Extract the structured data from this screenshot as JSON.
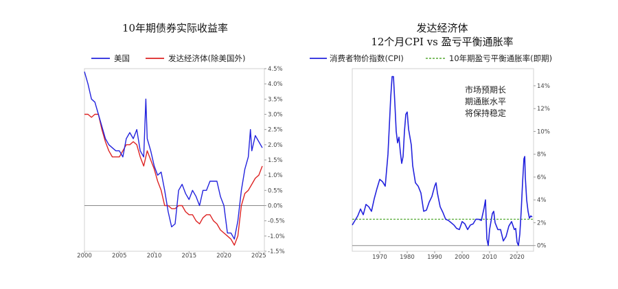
{
  "chart_data": [
    {
      "type": "line",
      "title": "10年期债券实际收益率",
      "xlabel": "",
      "ylabel": "",
      "xlim": [
        2000,
        2025.8
      ],
      "ylim": [
        -1.5,
        4.5
      ],
      "x_ticks": [
        2000,
        2005,
        2010,
        2015,
        2020,
        2025
      ],
      "x_tick_labels": [
        "2000",
        "2005",
        "2010",
        "2015",
        "2020",
        "2025"
      ],
      "y_ticks": [
        -1.5,
        -1.0,
        -0.5,
        0.0,
        0.5,
        1.0,
        1.5,
        2.0,
        2.5,
        3.0,
        3.5,
        4.0,
        4.5
      ],
      "y_tick_labels": [
        "-1.5%",
        "-1.0%",
        "-0.5%",
        "0.0%",
        "0.5%",
        "1.0%",
        "1.5%",
        "2.0%",
        "2.5%",
        "3.0%",
        "3.5%",
        "4.0%",
        "4.5%"
      ],
      "y_axis_side": "right",
      "zero_line": true,
      "grid": false,
      "legend_position": "top",
      "series": [
        {
          "name": "美国",
          "color": "#2222dd",
          "x": [
            2000.0,
            2000.5,
            2001.0,
            2001.5,
            2002.0,
            2002.5,
            2003.0,
            2003.5,
            2004.0,
            2004.5,
            2005.0,
            2005.5,
            2006.0,
            2006.5,
            2007.0,
            2007.5,
            2008.0,
            2008.5,
            2008.8,
            2009.0,
            2009.5,
            2010.0,
            2010.5,
            2011.0,
            2011.5,
            2012.0,
            2012.5,
            2013.0,
            2013.5,
            2014.0,
            2014.5,
            2015.0,
            2015.5,
            2016.0,
            2016.5,
            2017.0,
            2017.5,
            2018.0,
            2018.5,
            2019.0,
            2019.5,
            2020.0,
            2020.5,
            2021.0,
            2021.5,
            2022.0,
            2022.5,
            2023.0,
            2023.5,
            2023.8,
            2024.0,
            2024.5,
            2025.0,
            2025.5
          ],
          "values": [
            4.4,
            4.0,
            3.5,
            3.4,
            3.0,
            2.6,
            2.2,
            2.0,
            1.9,
            1.8,
            1.8,
            1.6,
            2.2,
            2.4,
            2.2,
            2.5,
            1.8,
            1.6,
            3.5,
            2.2,
            1.8,
            1.3,
            1.0,
            1.1,
            0.5,
            -0.2,
            -0.7,
            -0.6,
            0.5,
            0.7,
            0.4,
            0.2,
            0.5,
            0.3,
            0.0,
            0.5,
            0.5,
            0.8,
            0.8,
            0.8,
            0.3,
            0.0,
            -0.9,
            -0.9,
            -1.1,
            -0.5,
            0.5,
            1.2,
            1.6,
            2.5,
            1.8,
            2.3,
            2.1,
            1.9
          ]
        },
        {
          "name": "发达经济体(除美国外)",
          "color": "#dd2222",
          "x": [
            2000.0,
            2000.5,
            2001.0,
            2001.5,
            2002.0,
            2002.5,
            2003.0,
            2003.5,
            2004.0,
            2004.5,
            2005.0,
            2005.5,
            2006.0,
            2006.5,
            2007.0,
            2007.5,
            2008.0,
            2008.5,
            2009.0,
            2009.5,
            2010.0,
            2010.5,
            2011.0,
            2011.5,
            2012.0,
            2012.5,
            2013.0,
            2013.5,
            2014.0,
            2014.5,
            2015.0,
            2015.5,
            2016.0,
            2016.5,
            2017.0,
            2017.5,
            2018.0,
            2018.5,
            2019.0,
            2019.5,
            2020.0,
            2020.5,
            2021.0,
            2021.5,
            2022.0,
            2022.5,
            2023.0,
            2023.5,
            2024.0,
            2024.5,
            2025.0,
            2025.5
          ],
          "values": [
            3.0,
            3.0,
            2.9,
            3.0,
            3.0,
            2.5,
            2.1,
            1.8,
            1.6,
            1.6,
            1.6,
            1.8,
            2.0,
            2.0,
            2.1,
            2.0,
            1.6,
            1.3,
            1.8,
            1.5,
            1.2,
            0.8,
            0.5,
            0.0,
            0.0,
            -0.1,
            -0.1,
            0.0,
            0.0,
            -0.2,
            -0.3,
            -0.3,
            -0.5,
            -0.6,
            -0.4,
            -0.3,
            -0.3,
            -0.5,
            -0.6,
            -0.8,
            -0.9,
            -1.0,
            -1.1,
            -1.3,
            -1.0,
            0.0,
            0.4,
            0.5,
            0.7,
            0.9,
            1.0,
            1.3
          ]
        }
      ]
    },
    {
      "type": "line",
      "title": "发达经济体",
      "subtitle": "12个月CPI vs 盈亏平衡通胀率",
      "xlabel": "",
      "ylabel": "",
      "xlim": [
        1960,
        2026
      ],
      "ylim": [
        -0.5,
        15.5
      ],
      "x_ticks": [
        1970,
        1980,
        1990,
        2000,
        2010,
        2020
      ],
      "x_tick_labels": [
        "1970",
        "1980",
        "1990",
        "2000",
        "2010",
        "2020"
      ],
      "y_ticks": [
        0,
        2,
        4,
        6,
        8,
        10,
        12,
        14
      ],
      "y_tick_labels": [
        "0%",
        "2%",
        "4%",
        "6%",
        "8%",
        "10%",
        "12%",
        "14%"
      ],
      "y_axis_side": "right",
      "zero_line": true,
      "grid": false,
      "legend_position": "top",
      "annotation": [
        "市场预期长",
        "期通胀水平",
        "将保持稳定"
      ],
      "series": [
        {
          "name": "消费者物价指数(CPI)",
          "color": "#2222dd",
          "style": "solid",
          "x": [
            1960.0,
            1961.0,
            1962.0,
            1963.0,
            1964.0,
            1965.0,
            1966.0,
            1967.0,
            1968.0,
            1969.0,
            1970.0,
            1971.0,
            1972.0,
            1973.0,
            1974.0,
            1974.5,
            1975.0,
            1975.5,
            1976.0,
            1976.5,
            1977.0,
            1977.5,
            1978.0,
            1978.5,
            1979.0,
            1979.5,
            1980.0,
            1980.5,
            1981.0,
            1981.5,
            1982.0,
            1983.0,
            1984.0,
            1985.0,
            1986.0,
            1987.0,
            1988.0,
            1989.0,
            1990.0,
            1990.5,
            1991.0,
            1992.0,
            1993.0,
            1994.0,
            1995.0,
            1996.0,
            1997.0,
            1998.0,
            1999.0,
            2000.0,
            2001.0,
            2002.0,
            2003.0,
            2004.0,
            2005.0,
            2006.0,
            2007.0,
            2008.0,
            2008.5,
            2009.0,
            2009.5,
            2010.0,
            2011.0,
            2011.5,
            2012.0,
            2013.0,
            2014.0,
            2015.0,
            2016.0,
            2017.0,
            2018.0,
            2019.0,
            2019.5,
            2020.0,
            2020.5,
            2021.0,
            2021.5,
            2022.0,
            2022.5,
            2022.8,
            2023.0,
            2023.5,
            2024.0,
            2024.5,
            2025.0,
            2025.5
          ],
          "values": [
            1.8,
            2.2,
            2.6,
            3.2,
            2.7,
            3.6,
            3.4,
            3.0,
            4.1,
            5.0,
            5.8,
            5.6,
            5.2,
            8.0,
            13.0,
            14.8,
            14.8,
            12.5,
            10.0,
            9.0,
            9.5,
            8.2,
            7.2,
            7.8,
            10.0,
            11.5,
            11.7,
            10.2,
            9.5,
            8.8,
            7.0,
            5.5,
            5.2,
            4.6,
            3.0,
            3.1,
            3.8,
            4.3,
            5.2,
            5.5,
            4.6,
            3.4,
            2.9,
            2.3,
            2.2,
            2.0,
            1.8,
            1.5,
            1.4,
            2.1,
            1.9,
            1.4,
            1.8,
            1.9,
            2.3,
            2.3,
            2.2,
            3.3,
            4.0,
            0.6,
            0.0,
            1.4,
            2.8,
            3.0,
            2.0,
            1.4,
            1.4,
            0.4,
            0.8,
            1.7,
            2.1,
            1.4,
            1.5,
            0.3,
            0.0,
            1.0,
            3.0,
            5.5,
            7.6,
            7.8,
            6.0,
            4.0,
            3.0,
            2.4,
            2.6,
            2.5
          ]
        },
        {
          "name": "10年期盈亏平衡通胀率(即期)",
          "color": "#55aa33",
          "style": "dashed",
          "x": [
            1960,
            2026
          ],
          "values": [
            2.3,
            2.3
          ]
        }
      ]
    }
  ]
}
